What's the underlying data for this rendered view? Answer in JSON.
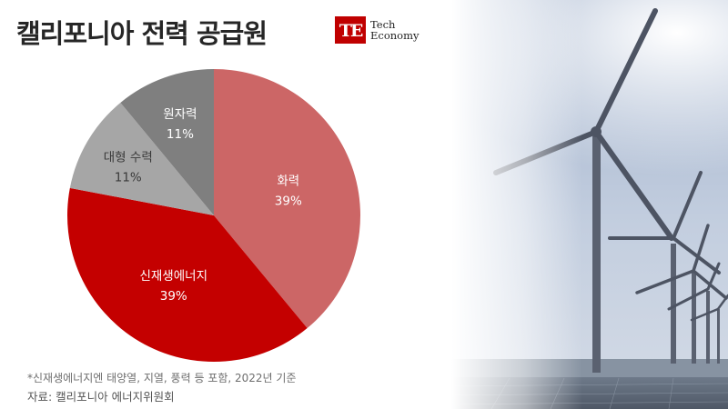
{
  "header": {
    "title": "캘리포니아 전력 공급원",
    "logo_line1": "Tech",
    "logo_line2": "Economy",
    "logo_mark_letters": "TE"
  },
  "chart_data": {
    "type": "pie",
    "title": "캘리포니아 전력 공급원",
    "start_angle_deg": 0,
    "direction": "clockwise",
    "slices": [
      {
        "label": "화력",
        "value": 39,
        "display": "39%",
        "color": "#cc6666",
        "label_color": "#ffffff"
      },
      {
        "label": "신재생에너지",
        "value": 39,
        "display": "39%",
        "color": "#c40000",
        "label_color": "#ffffff"
      },
      {
        "label": "대형 수력",
        "value": 11,
        "display": "11%",
        "color": "#a6a6a6",
        "label_color": "#3a3a3a"
      },
      {
        "label": "원자력",
        "value": 11,
        "display": "11%",
        "color": "#7f7f7f",
        "label_color": "#ffffff"
      }
    ]
  },
  "footer": {
    "footnote": "*신재생에너지엔 태양열, 지열, 풍력 등 포함, 2022년 기준",
    "source": "자료: 캘리포니아 에너지위원회"
  },
  "background_image": {
    "description_icon": "wind-turbines-photo",
    "sky_color": "#aab9d1",
    "sea_color": "#7c8897"
  }
}
